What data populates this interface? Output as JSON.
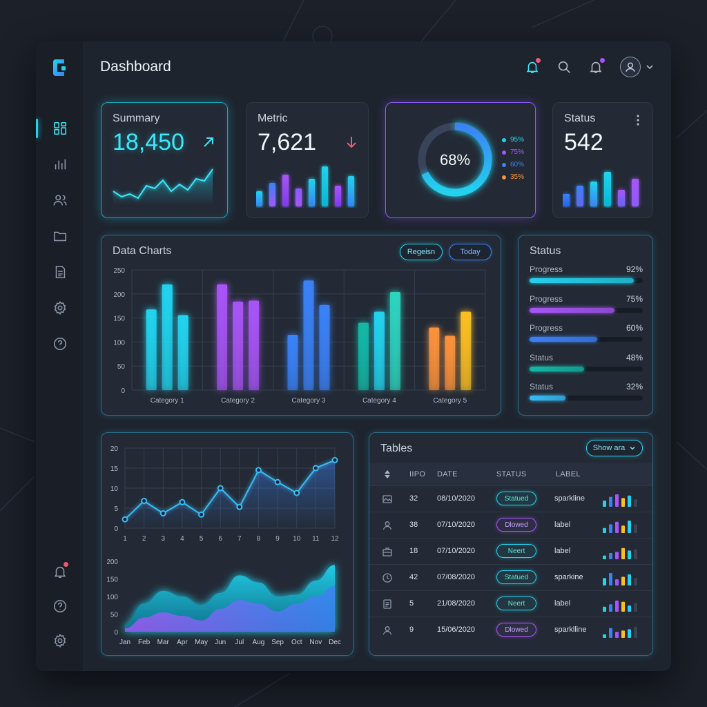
{
  "header": {
    "title": "Dashboard"
  },
  "colors": {
    "cyan": "#22d3ee",
    "violet": "#a855f7",
    "blue": "#3b82f6",
    "teal": "#14b8a6",
    "orange": "#fb923c",
    "red": "#f05a78"
  },
  "sidebar": {
    "icons": [
      "dashboard-icon",
      "bar-chart-icon",
      "users-icon",
      "folder-icon",
      "document-icon",
      "settings-icon",
      "help-icon"
    ],
    "bottom_icons": [
      "notification-icon",
      "help-icon",
      "settings-icon"
    ]
  },
  "summary_card": {
    "label": "Summary",
    "value": "18,450",
    "trend": "up",
    "sparkline": [
      40,
      32,
      36,
      30,
      48,
      44,
      56,
      40,
      50,
      42,
      58,
      55,
      72
    ]
  },
  "metric_card": {
    "label": "Metric",
    "value": "7,621",
    "trend": "down",
    "bars": [
      22,
      34,
      46,
      26,
      40,
      58,
      30,
      44
    ]
  },
  "donut_card": {
    "center": "68%",
    "value": 68,
    "legend": [
      {
        "label": "95%",
        "color": "#22d3ee"
      },
      {
        "label": "75%",
        "color": "#a855f7"
      },
      {
        "label": "60%",
        "color": "#3b82f6"
      },
      {
        "label": "35%",
        "color": "#fb923c"
      }
    ]
  },
  "status_card": {
    "label": "Status",
    "value": "542",
    "bars": [
      18,
      30,
      36,
      50,
      24,
      40
    ]
  },
  "data_charts": {
    "title": "Data Charts",
    "buttons": {
      "region": "Regeisn",
      "today": "Today"
    }
  },
  "chart_data": [
    {
      "type": "bar",
      "title": "Data Charts",
      "categories": [
        "Category 1",
        "Category 2",
        "Category 3",
        "Category 4",
        "Category 5"
      ],
      "series": [
        {
          "values": [
            168,
            220,
            115,
            140,
            130
          ]
        },
        {
          "values": [
            220,
            184,
            228,
            163,
            113
          ]
        },
        {
          "values": [
            156,
            186,
            177,
            204,
            163
          ]
        }
      ],
      "category_colors": [
        [
          "#22d3ee",
          "#22d3ee",
          "#22d3ee"
        ],
        [
          "#a855f7",
          "#a855f7",
          "#a855f7"
        ],
        [
          "#3b82f6",
          "#3b82f6",
          "#3b82f6"
        ],
        [
          "#14b8a6",
          "#22d3ee",
          "#2dd4bf"
        ],
        [
          "#fb923c",
          "#fb923c",
          "#fbbf24"
        ]
      ],
      "yticks": [
        0,
        50,
        100,
        150,
        200,
        250
      ],
      "ylim": [
        0,
        250
      ],
      "grid": true
    },
    {
      "type": "line",
      "x": [
        1,
        2,
        3,
        4,
        5,
        6,
        7,
        8,
        9,
        10,
        11,
        12
      ],
      "values": [
        2.2,
        6.8,
        3.7,
        6.5,
        3.4,
        10.0,
        5.3,
        14.5,
        11.5,
        8.8,
        15.0,
        17.0
      ],
      "yticks": [
        0,
        5,
        10,
        15,
        20
      ],
      "ylim": [
        0,
        20
      ],
      "grid": true
    },
    {
      "type": "area",
      "x": [
        "Jan",
        "Feb",
        "Mar",
        "Apr",
        "May",
        "Jun",
        "Jul",
        "Aug",
        "Sep",
        "Oct",
        "Nov",
        "Dec"
      ],
      "series": [
        {
          "values": [
            20,
            80,
            116,
            100,
            75,
            110,
            160,
            140,
            100,
            105,
            145,
            190
          ]
        },
        {
          "values": [
            10,
            40,
            55,
            45,
            32,
            65,
            90,
            80,
            58,
            80,
            100,
            130
          ]
        }
      ],
      "yticks": [
        0,
        50,
        100,
        150,
        200
      ],
      "ylim": [
        0,
        200
      ]
    }
  ],
  "status_panel": {
    "title": "Status",
    "items": [
      {
        "label": "Progress",
        "value": "92%",
        "fraction": 0.92,
        "color": "#22d3ee"
      },
      {
        "label": "Progress",
        "value": "75%",
        "fraction": 0.75,
        "color": "#a855f7"
      },
      {
        "label": "Progress",
        "value": "60%",
        "fraction": 0.6,
        "color": "#3b82f6"
      },
      {
        "label": "Status",
        "value": "48%",
        "fraction": 0.48,
        "color": "#14b8a6"
      },
      {
        "label": "Status",
        "value": "32%",
        "fraction": 0.32,
        "color": "#38bdf8"
      }
    ]
  },
  "tables": {
    "title": "Tables",
    "show_button": "Show ara",
    "columns": [
      "IIPO",
      "DATE",
      "STATUS",
      "LABEL"
    ],
    "rows": [
      {
        "icon": "image-icon",
        "id": "32",
        "date": "08/10/2020",
        "status": "Statued",
        "tone": "cyan",
        "label": "sparkline",
        "spark": [
          5,
          8,
          10,
          7,
          9,
          6
        ]
      },
      {
        "icon": "user-icon",
        "id": "38",
        "date": "07/10/2020",
        "status": "Dlowed",
        "tone": "violet",
        "label": "label",
        "spark": [
          4,
          7,
          9,
          6,
          10,
          7
        ]
      },
      {
        "icon": "briefcase-icon",
        "id": "18",
        "date": "07/10/2020",
        "status": "Neert",
        "tone": "cyan",
        "label": "label",
        "spark": [
          3,
          5,
          6,
          9,
          7,
          8
        ]
      },
      {
        "icon": "clock-icon",
        "id": "42",
        "date": "07/08/2020",
        "status": "Statued",
        "tone": "cyan",
        "label": "sparkine",
        "spark": [
          6,
          10,
          5,
          7,
          9,
          6
        ]
      },
      {
        "icon": "list-icon",
        "id": "5",
        "date": "21/08/2020",
        "status": "Neert",
        "tone": "cyan",
        "label": "label",
        "spark": [
          4,
          6,
          9,
          8,
          5,
          7
        ]
      },
      {
        "icon": "user-icon",
        "id": "9",
        "date": "15/06/2020",
        "status": "Dlowed",
        "tone": "violet",
        "label": "sparklline",
        "spark": [
          3,
          8,
          5,
          6,
          7,
          9
        ]
      }
    ]
  }
}
